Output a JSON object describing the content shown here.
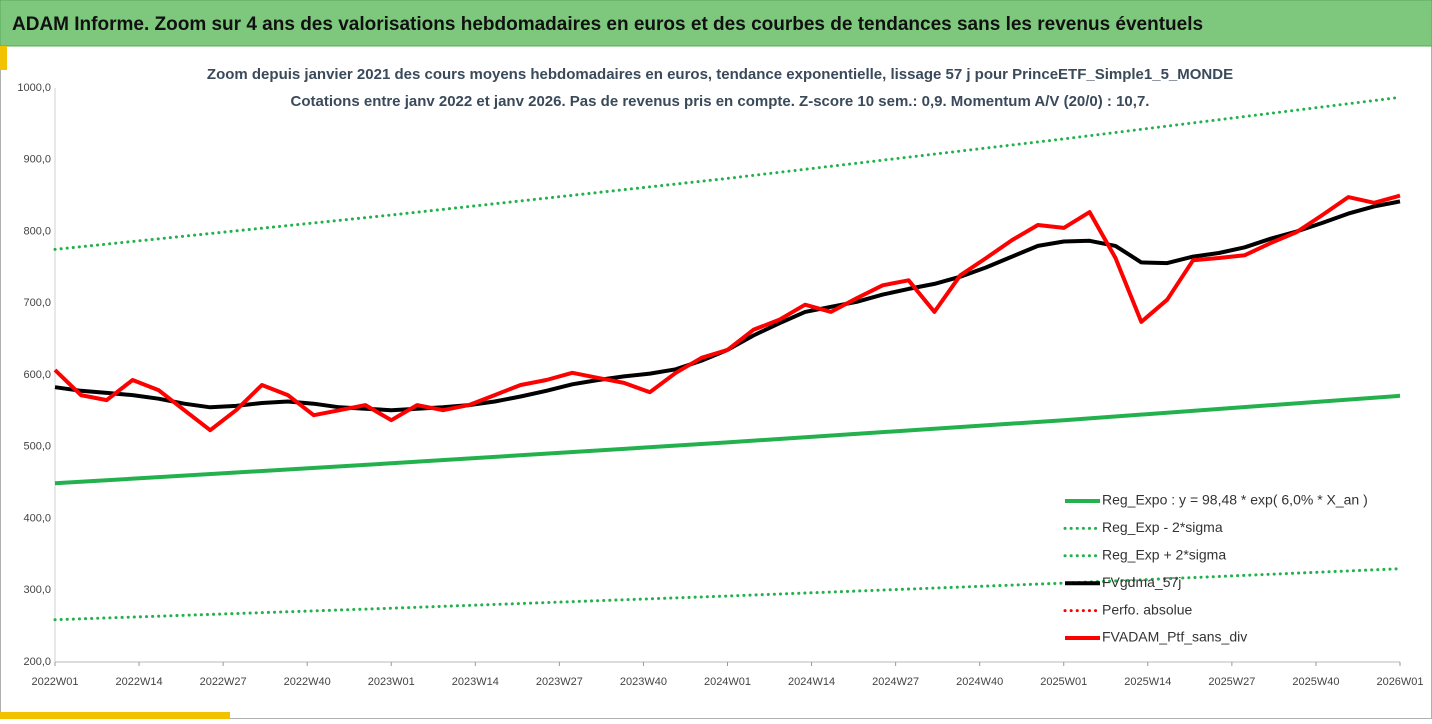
{
  "chart_data": {
    "type": "line",
    "header": "ADAM Informe. Zoom sur 4 ans des valorisations hebdomadaires en euros et des courbes de tendances sans les revenus éventuels",
    "title": "Zoom depuis janvier 2021 des cours moyens hebdomadaires  en euros, tendance exponentielle, lissage 57 j pour PrinceETF_Simple1_5_MONDE",
    "subtitle": "Cotations entre janv 2022 et janv 2026. Pas de revenus pris en compte. Z-score 10 sem.: 0,9. Momentum  A/V (20/0) : 10,7.",
    "xlim": [
      0,
      208
    ],
    "xticks": [
      {
        "value": 0,
        "label": "2022W01"
      },
      {
        "value": 13,
        "label": "2022W14"
      },
      {
        "value": 26,
        "label": "2022W27"
      },
      {
        "value": 39,
        "label": "2022W40"
      },
      {
        "value": 52,
        "label": "2023W01"
      },
      {
        "value": 65,
        "label": "2023W14"
      },
      {
        "value": 78,
        "label": "2023W27"
      },
      {
        "value": 91,
        "label": "2023W40"
      },
      {
        "value": 104,
        "label": "2024W01"
      },
      {
        "value": 117,
        "label": "2024W14"
      },
      {
        "value": 130,
        "label": "2024W27"
      },
      {
        "value": 143,
        "label": "2024W40"
      },
      {
        "value": 156,
        "label": "2025W01"
      },
      {
        "value": 169,
        "label": "2025W14"
      },
      {
        "value": 182,
        "label": "2025W27"
      },
      {
        "value": 195,
        "label": "2025W40"
      },
      {
        "value": 208,
        "label": "2026W01"
      }
    ],
    "ylim": [
      200,
      1000
    ],
    "yticks": [
      {
        "value": 200,
        "label": "200,0"
      },
      {
        "value": 300,
        "label": "300,0"
      },
      {
        "value": 400,
        "label": "400,0"
      },
      {
        "value": 500,
        "label": "500,0"
      },
      {
        "value": 600,
        "label": "600,0"
      },
      {
        "value": 700,
        "label": "700,0"
      },
      {
        "value": 800,
        "label": "800,0"
      },
      {
        "value": 900,
        "label": "900,0"
      },
      {
        "value": 1000,
        "label": "1000,0"
      }
    ],
    "grid": false,
    "legend": "lower right",
    "series": [
      {
        "name": "Reg_Expo : y = 98,48 * exp( 6,0% *  X_an )",
        "color": "#22b14c",
        "style": "solid",
        "x": [
          0,
          52,
          104,
          156,
          208
        ],
        "values": [
          449,
          477,
          506,
          537,
          571
        ]
      },
      {
        "name": "Reg_Exp - 2*sigma",
        "color": "#22b14c",
        "style": "dotted",
        "x": [
          0,
          52,
          104,
          156,
          208
        ],
        "values": [
          259,
          275,
          292,
          310,
          330
        ]
      },
      {
        "name": "Reg_Exp + 2*sigma",
        "color": "#22b14c",
        "style": "dotted",
        "x": [
          0,
          52,
          104,
          156,
          208
        ],
        "values": [
          775,
          823,
          874,
          929,
          987
        ]
      },
      {
        "name": "FVgdma_57j",
        "color": "#000000",
        "style": "solid",
        "x": [
          0,
          4,
          8,
          12,
          16,
          20,
          24,
          28,
          32,
          36,
          40,
          44,
          48,
          52,
          56,
          60,
          64,
          68,
          72,
          76,
          80,
          84,
          88,
          92,
          96,
          100,
          104,
          108,
          112,
          116,
          120,
          124,
          128,
          132,
          136,
          140,
          144,
          148,
          152,
          156,
          160,
          164,
          168,
          172,
          176,
          180,
          184,
          188,
          192,
          196,
          200,
          204,
          208
        ],
        "values": [
          583,
          578,
          575,
          572,
          567,
          560,
          555,
          557,
          561,
          563,
          560,
          555,
          553,
          551,
          553,
          555,
          558,
          563,
          570,
          578,
          587,
          593,
          598,
          602,
          608,
          620,
          635,
          655,
          672,
          688,
          695,
          702,
          712,
          720,
          727,
          737,
          750,
          765,
          780,
          786,
          787,
          780,
          757,
          756,
          765,
          770,
          778,
          790,
          800,
          812,
          825,
          835,
          842
        ]
      },
      {
        "name": "Perfo. absolue",
        "color": "#ff0000",
        "style": "dotted",
        "x": [],
        "values": []
      },
      {
        "name": "FVADAM_Ptf_sans_div",
        "color": "#ff0000",
        "style": "solid",
        "x": [
          0,
          4,
          8,
          12,
          16,
          20,
          24,
          28,
          32,
          36,
          40,
          44,
          48,
          52,
          56,
          60,
          64,
          68,
          72,
          76,
          80,
          84,
          88,
          92,
          96,
          100,
          104,
          108,
          112,
          116,
          120,
          124,
          128,
          132,
          136,
          140,
          144,
          148,
          152,
          156,
          160,
          164,
          168,
          172,
          176,
          180,
          184,
          188,
          192,
          196,
          200,
          204,
          208
        ],
        "values": [
          607,
          572,
          565,
          593,
          579,
          551,
          523,
          551,
          586,
          572,
          544,
          551,
          558,
          537,
          558,
          551,
          558,
          572,
          586,
          593,
          603,
          596,
          589,
          576,
          603,
          624,
          635,
          663,
          677,
          698,
          688,
          707,
          725,
          732,
          688,
          739,
          763,
          788,
          809,
          805,
          827,
          763,
          674,
          705,
          760,
          763,
          767,
          784,
          799,
          823,
          848,
          840,
          850
        ]
      }
    ]
  }
}
